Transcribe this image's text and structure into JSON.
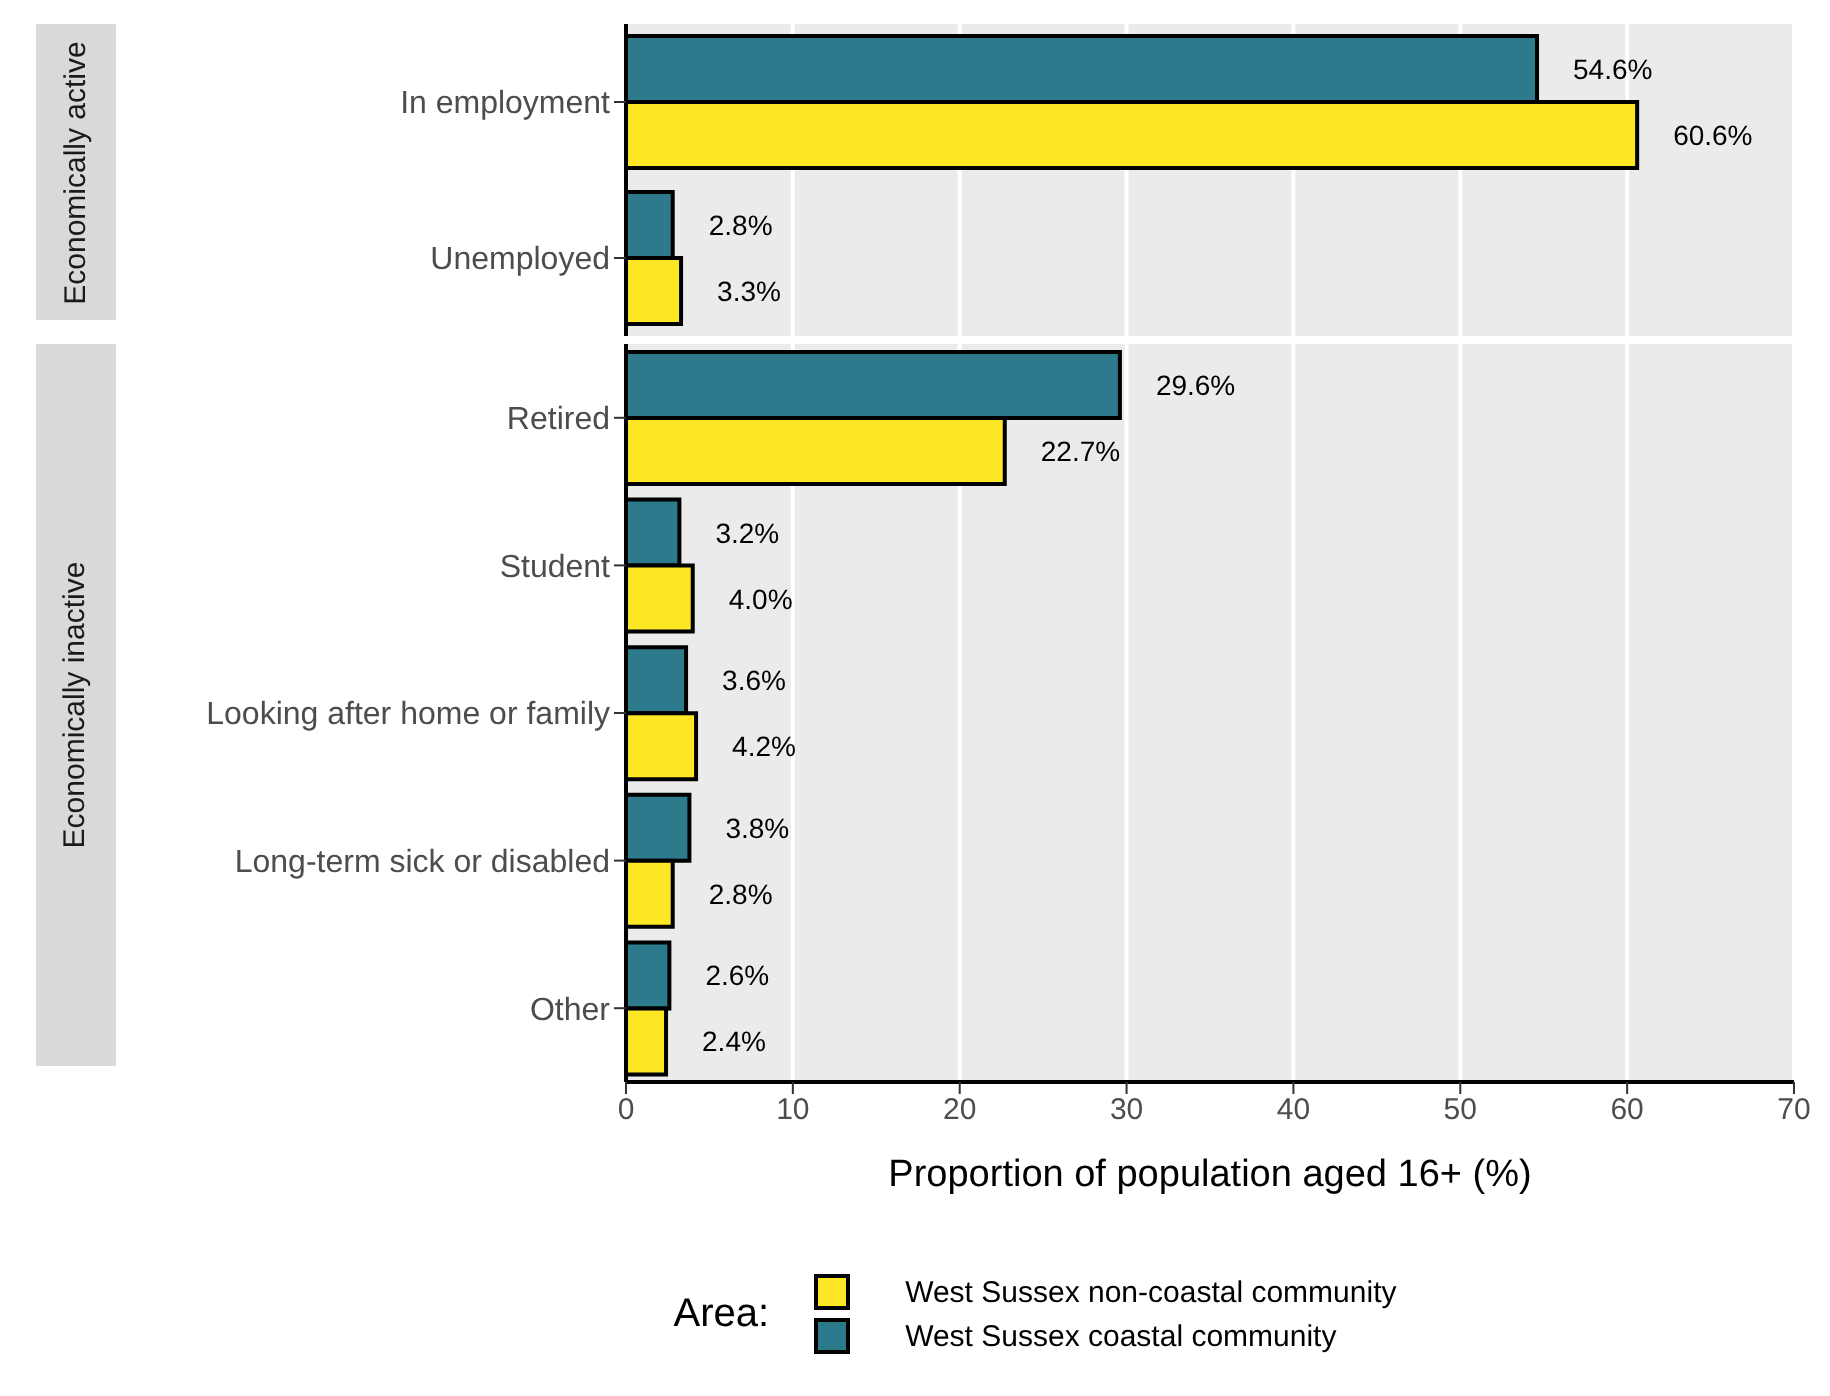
{
  "chart_data": [
    {
      "type": "bar",
      "orientation": "horizontal",
      "ylabel": "Economically active",
      "categories": [
        "In employment",
        "Unemployed"
      ],
      "series": [
        {
          "color": "#2c7a8c",
          "values": [
            54.6,
            2.8
          ],
          "value_labels": [
            "54.6%",
            "2.8%"
          ]
        },
        {
          "color": "#fde725",
          "values": [
            60.6,
            3.3
          ],
          "value_labels": [
            "60.6%",
            "3.3%"
          ]
        }
      ],
      "xlim": [
        0,
        70
      ],
      "xticks": [
        0,
        10,
        20,
        30,
        40,
        50,
        60,
        70
      ],
      "grid": "x",
      "tick_labels": "y"
    },
    {
      "type": "bar",
      "orientation": "horizontal",
      "ylabel": "Economically inactive",
      "categories": [
        "Retired",
        "Student",
        "Looking after home or family",
        "Long-term sick or disabled",
        "Other"
      ],
      "series": [
        {
          "name": "West Sussex coastal community",
          "color": "#2c7a8c",
          "values": [
            29.6,
            3.2,
            3.6,
            3.8,
            2.6
          ],
          "value_labels": [
            "29.6%",
            "3.2%",
            "3.6%",
            "3.8%",
            "2.6%"
          ]
        },
        {
          "name": "West Sussex non-coastal community",
          "color": "#fde725",
          "values": [
            22.7,
            4.0,
            4.2,
            2.8,
            2.4
          ],
          "value_labels": [
            "22.7%",
            "4.0%",
            "4.2%",
            "2.8%",
            "2.4%"
          ]
        }
      ],
      "xlim": [
        0,
        70
      ],
      "xticks": [
        0,
        10,
        20,
        30,
        40,
        50,
        60,
        70
      ],
      "xlabel": "Proportion of population aged 16+ (%)",
      "grid": "x",
      "legend": "bottom",
      "legend_title": "Area:"
    }
  ]
}
